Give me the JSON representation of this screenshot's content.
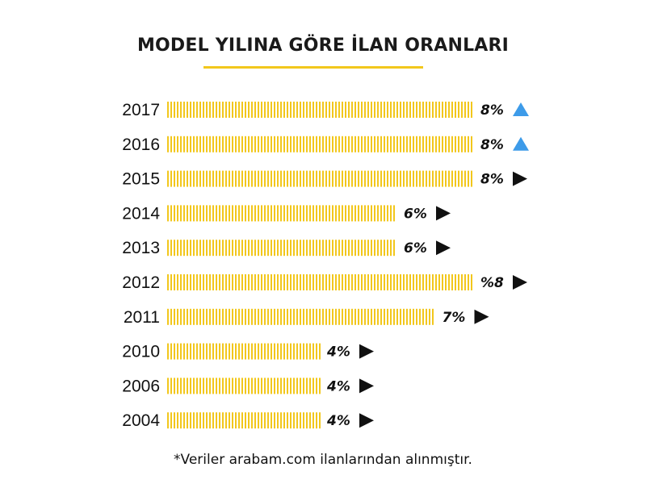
{
  "title": "MODEL YILINA GÖRE İLAN ORANLARI",
  "footnote": "*Veriler arabam.com ilanlarından alınmıştır.",
  "colors": {
    "bar": "#f2c71c",
    "up": "#3d9be9",
    "flat": "#111111",
    "text": "#111111"
  },
  "chart_data": {
    "type": "bar",
    "orientation": "horizontal",
    "title": "MODEL YILINA GÖRE İLAN ORANLARI",
    "categories": [
      "2017",
      "2016",
      "2015",
      "2014",
      "2013",
      "2012",
      "2011",
      "2010",
      "2006",
      "2004"
    ],
    "values": [
      8,
      8,
      8,
      6,
      6,
      8,
      7,
      4,
      4,
      4
    ],
    "value_labels": [
      "8%",
      "8%",
      "8%",
      "6%",
      "6%",
      "%8",
      "7%",
      "4%",
      "4%",
      "4%"
    ],
    "trend_icons": [
      "triangle-up",
      "triangle-up",
      "triangle-right",
      "triangle-right",
      "triangle-right",
      "triangle-right",
      "triangle-right",
      "triangle-right",
      "triangle-right",
      "triangle-right"
    ],
    "unit": "%",
    "xlim": [
      0,
      8
    ]
  }
}
